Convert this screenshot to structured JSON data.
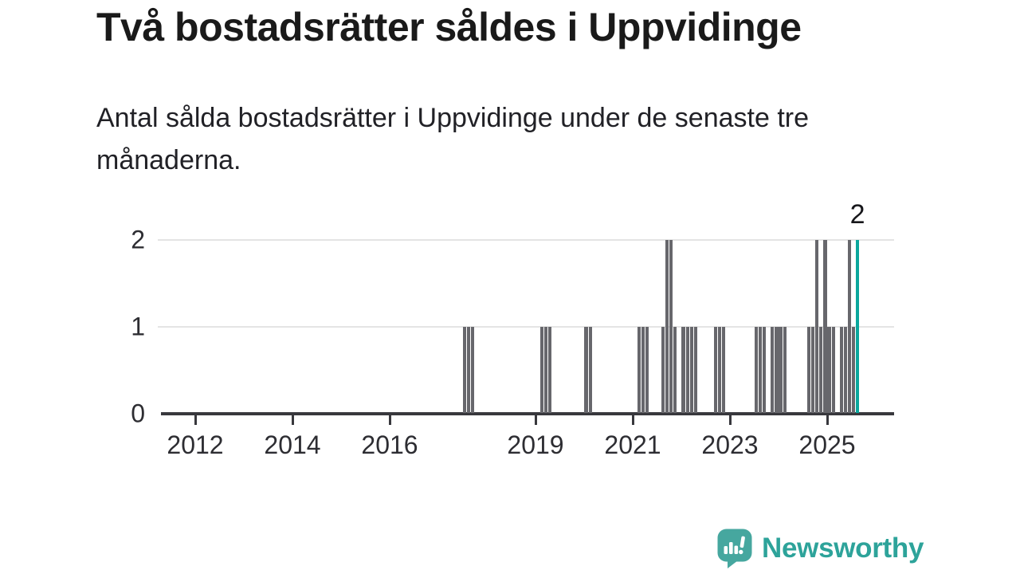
{
  "chart_data": {
    "type": "bar",
    "title": "Två bostadsrätter såldes i Uppvidinge",
    "subtitle": "Antal sålda bostadsrätter i Uppvidinge under de senaste tre månaderna.",
    "xlabel": "",
    "ylabel": "",
    "x_domain": [
      "2011-04",
      "2026-04"
    ],
    "ylim": [
      0,
      2
    ],
    "y_ticks": [
      0,
      1,
      2
    ],
    "x_ticks": [
      2012,
      2014,
      2016,
      2019,
      2021,
      2023,
      2025
    ],
    "grid": "horizontal",
    "legend": "none",
    "annotation": {
      "label": "2",
      "month": "2025-08"
    },
    "series": [
      {
        "month": "2017-07",
        "value": 1
      },
      {
        "month": "2017-08",
        "value": 1
      },
      {
        "month": "2017-09",
        "value": 1
      },
      {
        "month": "2019-02",
        "value": 1
      },
      {
        "month": "2019-03",
        "value": 1
      },
      {
        "month": "2019-04",
        "value": 1
      },
      {
        "month": "2020-01",
        "value": 1
      },
      {
        "month": "2020-02",
        "value": 1
      },
      {
        "month": "2021-02",
        "value": 1
      },
      {
        "month": "2021-03",
        "value": 1
      },
      {
        "month": "2021-04",
        "value": 1
      },
      {
        "month": "2021-08",
        "value": 1
      },
      {
        "month": "2021-09",
        "value": 2
      },
      {
        "month": "2021-10",
        "value": 2
      },
      {
        "month": "2021-11",
        "value": 1
      },
      {
        "month": "2022-01",
        "value": 1
      },
      {
        "month": "2022-02",
        "value": 1
      },
      {
        "month": "2022-03",
        "value": 1
      },
      {
        "month": "2022-04",
        "value": 1
      },
      {
        "month": "2022-09",
        "value": 1
      },
      {
        "month": "2022-10",
        "value": 1
      },
      {
        "month": "2022-11",
        "value": 1
      },
      {
        "month": "2023-07",
        "value": 1
      },
      {
        "month": "2023-08",
        "value": 1
      },
      {
        "month": "2023-09",
        "value": 1
      },
      {
        "month": "2023-11",
        "value": 1
      },
      {
        "month": "2023-12",
        "value": 1
      },
      {
        "month": "2024-01",
        "value": 1
      },
      {
        "month": "2024-02",
        "value": 1
      },
      {
        "month": "2024-08",
        "value": 1
      },
      {
        "month": "2024-09",
        "value": 1
      },
      {
        "month": "2024-10",
        "value": 2
      },
      {
        "month": "2024-11",
        "value": 1
      },
      {
        "month": "2024-12",
        "value": 2
      },
      {
        "month": "2025-01",
        "value": 1
      },
      {
        "month": "2025-02",
        "value": 1
      },
      {
        "month": "2025-04",
        "value": 1
      },
      {
        "month": "2025-05",
        "value": 1
      },
      {
        "month": "2025-06",
        "value": 2
      },
      {
        "month": "2025-07",
        "value": 1
      },
      {
        "month": "2025-08",
        "value": 2,
        "highlight": true
      }
    ]
  },
  "footer": {
    "brand": "Newsworthy"
  },
  "colors": {
    "bar": "#67676c",
    "highlight": "#0aa79d",
    "axis": "#38383d",
    "grid": "#e4e4e4",
    "tick_text": "#2d2d32",
    "title_text": "#1a1a1a",
    "logo_icon": "#46a79f",
    "logo_text": "#2da39a"
  }
}
